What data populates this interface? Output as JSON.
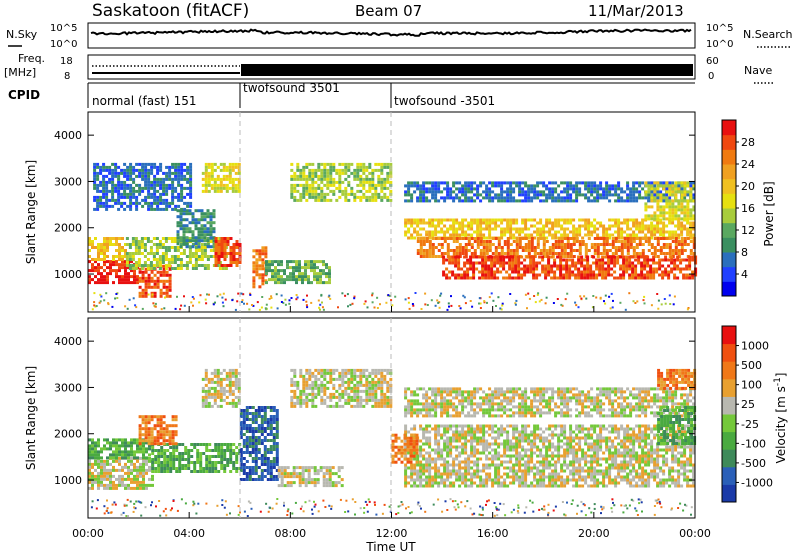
{
  "header": {
    "station": "Saskatoon (fitACF)",
    "beam": "Beam 07",
    "date": "11/Mar/2013"
  },
  "top_panel": {
    "left_label": "N.Sky",
    "left_ticks": [
      "10^5",
      "10^0"
    ],
    "right_ticks": [
      "10^5",
      "10^0"
    ],
    "right_label": "N.Search"
  },
  "freq_panel": {
    "left_label_line1": "Freq.",
    "left_label_line2": "[MHz]",
    "left_ticks": [
      "18",
      "8"
    ],
    "right_ticks": [
      "60",
      "0"
    ],
    "right_label": "Nave"
  },
  "cpid_panel": {
    "label": "CPID",
    "segments": [
      {
        "name": "normal (fast) 151",
        "start": 0,
        "end": 6
      },
      {
        "name": "twofsound 3501",
        "start": 6,
        "end": 12
      },
      {
        "name": "twofsound -3501",
        "start": 12,
        "end": 24
      }
    ]
  },
  "xaxis": {
    "label": "Time UT",
    "ticks": [
      "00:00",
      "04:00",
      "08:00",
      "12:00",
      "16:00",
      "20:00",
      "00:00"
    ]
  },
  "yaxis": {
    "label": "Slant Range [km]",
    "ticks": [
      "1000",
      "2000",
      "3000",
      "4000"
    ]
  },
  "power_colorbar": {
    "title": "Power [dB]",
    "ticks": [
      "28",
      "24",
      "20",
      "16",
      "12",
      "8",
      "4"
    ],
    "colors": [
      "#0000ee",
      "#2040ff",
      "#2a6fbd",
      "#3a8f60",
      "#5aa860",
      "#a8cc3c",
      "#e6e010",
      "#f0c020",
      "#f0a020",
      "#f07a10",
      "#f04810",
      "#e81010"
    ]
  },
  "velocity_colorbar": {
    "title": "Velocity [m s^-1]",
    "ticks": [
      "1000",
      "500",
      "100",
      "25",
      "-25",
      "-100",
      "-500",
      "-1000"
    ],
    "colors": [
      "#1a3aa8",
      "#2a5fb8",
      "#3e8a5a",
      "#4aaa40",
      "#74c83a",
      "#b8b8b0",
      "#e8a030",
      "#f07818",
      "#f05010",
      "#e81010"
    ]
  },
  "chart_data": {
    "type": "heatmap",
    "x_range_hours": [
      0,
      24
    ],
    "y_range_km": [
      180,
      4500
    ],
    "program_changes_hours": [
      6,
      12
    ],
    "power_panel_bands": [
      {
        "t0": 0.0,
        "t1": 2.0,
        "r0": 800,
        "r1": 1300,
        "level": 11
      },
      {
        "t0": 2.0,
        "t1": 3.2,
        "r0": 500,
        "r1": 1200,
        "level": 10
      },
      {
        "t0": 0.0,
        "t1": 1.5,
        "r0": 1300,
        "r1": 1800,
        "level": 7
      },
      {
        "t0": 1.5,
        "t1": 5.5,
        "r0": 1100,
        "r1": 1800,
        "level": 5
      },
      {
        "t0": 3.5,
        "t1": 5.0,
        "r0": 1600,
        "r1": 2400,
        "level": 3
      },
      {
        "t0": 0.2,
        "t1": 4.0,
        "r0": 2400,
        "r1": 3400,
        "level": 2
      },
      {
        "t0": 4.5,
        "t1": 6.0,
        "r0": 2800,
        "r1": 3400,
        "level": 6
      },
      {
        "t0": 5.0,
        "t1": 6.0,
        "r0": 1200,
        "r1": 1800,
        "level": 10
      },
      {
        "t0": 6.5,
        "t1": 7.0,
        "r0": 700,
        "r1": 1600,
        "level": 9
      },
      {
        "t0": 7.0,
        "t1": 9.5,
        "r0": 800,
        "r1": 1300,
        "level": 4
      },
      {
        "t0": 8.0,
        "t1": 12.0,
        "r0": 2600,
        "r1": 3400,
        "level": 5
      },
      {
        "t0": 12.5,
        "t1": 24.0,
        "r0": 1800,
        "r1": 2200,
        "level": 7
      },
      {
        "t0": 13.0,
        "t1": 24.0,
        "r0": 1400,
        "r1": 1800,
        "level": 9
      },
      {
        "t0": 14.0,
        "t1": 24.0,
        "r0": 900,
        "r1": 1400,
        "level": 10
      },
      {
        "t0": 12.5,
        "t1": 24.0,
        "r0": 2600,
        "r1": 3000,
        "level": 2
      },
      {
        "t0": 22.0,
        "t1": 24.0,
        "r0": 2200,
        "r1": 3000,
        "level": 6
      }
    ],
    "velocity_panel_bands": [
      {
        "t0": 0.0,
        "t1": 2.5,
        "r0": 800,
        "r1": 1500,
        "level": 5
      },
      {
        "t0": 0.0,
        "t1": 2.5,
        "r0": 1500,
        "r1": 1900,
        "level": 3
      },
      {
        "t0": 2.5,
        "t1": 6.0,
        "r0": 1200,
        "r1": 1800,
        "level": 3
      },
      {
        "t0": 2.0,
        "t1": 3.5,
        "r0": 1800,
        "r1": 2400,
        "level": 7
      },
      {
        "t0": 4.5,
        "t1": 6.0,
        "r0": 2600,
        "r1": 3400,
        "level": 5
      },
      {
        "t0": 6.0,
        "t1": 7.5,
        "r0": 1000,
        "r1": 2600,
        "level": 1
      },
      {
        "t0": 7.5,
        "t1": 10.0,
        "r0": 900,
        "r1": 1300,
        "level": 5
      },
      {
        "t0": 8.0,
        "t1": 12.0,
        "r0": 2600,
        "r1": 3400,
        "level": 5
      },
      {
        "t0": 12.5,
        "t1": 24.0,
        "r0": 900,
        "r1": 2200,
        "level": 5
      },
      {
        "t0": 12.5,
        "t1": 24.0,
        "r0": 2400,
        "r1": 3000,
        "level": 5
      },
      {
        "t0": 12.0,
        "t1": 13.0,
        "r0": 1400,
        "r1": 2000,
        "level": 7
      },
      {
        "t0": 22.5,
        "t1": 24.0,
        "r0": 1800,
        "r1": 2600,
        "level": 3
      },
      {
        "t0": 22.5,
        "t1": 24.0,
        "r0": 3000,
        "r1": 3400,
        "level": 7
      }
    ]
  }
}
